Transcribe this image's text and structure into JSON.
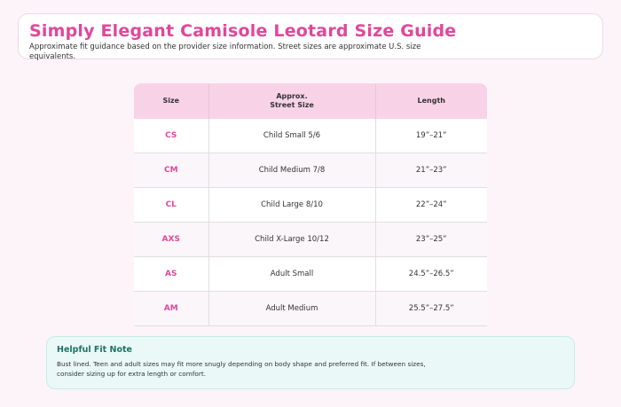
{
  "header": {
    "title": "Simply Elegant Camisole Leotard Size Guide",
    "subtitle": "Approximate fit guidance based on the provider size information. Street sizes are approximate U.S. size equivalents."
  },
  "table": {
    "columns": [
      "Size",
      "Approx.\nStreet Size",
      "Length"
    ],
    "rows": [
      {
        "size": "CS",
        "street": "Child Small 5/6",
        "length": "19”–21”"
      },
      {
        "size": "CM",
        "street": "Child Medium 7/8",
        "length": "21”–23”"
      },
      {
        "size": "CL",
        "street": "Child Large 8/10",
        "length": "22”–24”"
      },
      {
        "size": "AXS",
        "street": "Child X-Large 10/12",
        "length": "23”–25”"
      },
      {
        "size": "AS",
        "street": "Adult Small",
        "length": "24.5”–26.5”"
      },
      {
        "size": "AM",
        "street": "Adult Medium",
        "length": "25.5”–27.5”"
      }
    ]
  },
  "note": {
    "title": "Helpful Fit Note",
    "text": "Bust lined. Teen and adult sizes may fit more snugly depending on body shape and preferred fit. If between sizes, consider sizing up for extra length or comfort."
  },
  "colors": {
    "accent": "#e0479a",
    "header_bg": "#f8d3e8",
    "note_bg": "#eaf9f7",
    "note_title": "#1d7265",
    "page_bg": "#fdf4fa"
  }
}
